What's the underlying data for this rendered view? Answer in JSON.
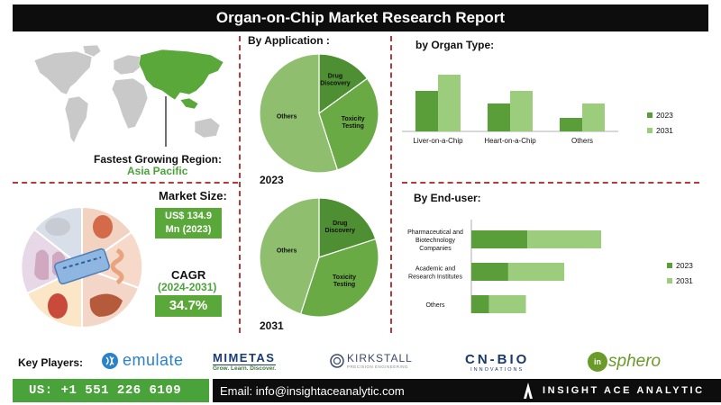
{
  "report": {
    "title": "Organ-on-Chip Market Research Report"
  },
  "region": {
    "label": "Fastest Growing Region:",
    "value": "Asia Pacific"
  },
  "market_size": {
    "label": "Market Size:",
    "value_line1": "US$ 134.9",
    "value_line2": "Mn (2023)"
  },
  "cagr": {
    "label": "CAGR",
    "period": "(2024-2031)",
    "value": "34.7%"
  },
  "application": {
    "title": "By Application :",
    "year_2023": "2023",
    "year_2031": "2031"
  },
  "organ": {
    "title": "by Organ Type:"
  },
  "enduser": {
    "title": "By End-user:"
  },
  "key_players": {
    "label": "Key Players:",
    "logos": [
      {
        "name": "emulate",
        "text": "emulate",
        "color": "#2a82c8"
      },
      {
        "name": "mimetas",
        "text": "MIMETAS",
        "sub": "Grow. Learn. Discover.",
        "color": "#1a3c73"
      },
      {
        "name": "kirkstall",
        "text": "KIRKSTALL",
        "sub": "PRECISION ENGINEERING",
        "color": "#3a4a6a"
      },
      {
        "name": "cnbio",
        "text": "CN-BIO",
        "sub": "INNOVATIONS",
        "color": "#1a3a6a"
      },
      {
        "name": "insphero",
        "text": "sphero",
        "prefix": "in",
        "color": "#6a9a2a"
      }
    ]
  },
  "footer": {
    "phone": "US: +1 551 226 6109",
    "email": "Email: info@insightaceanalytic.com",
    "brand": "INSIGHT ACE ANALYTIC"
  },
  "colors": {
    "dark_green": "#5a9e3a",
    "light_green": "#9ccd7c",
    "pie_dark": "#4f8f33",
    "pie_mid": "#6aaa44",
    "pie_light": "#8fbf6e",
    "accent_red": "#b33b3b"
  },
  "chart_data": [
    {
      "type": "pie",
      "title": "2023",
      "categories": [
        "Drug Discovery",
        "Toxicity Testing",
        "Others"
      ],
      "values": [
        15,
        30,
        55
      ]
    },
    {
      "type": "pie",
      "title": "2031",
      "categories": [
        "Drug Discovery",
        "Toxicity Testing",
        "Others"
      ],
      "values": [
        20,
        35,
        45
      ]
    },
    {
      "type": "bar",
      "title": "by Organ Type:",
      "categories": [
        "Liver-on-a-Chip",
        "Heart-on-a-Chip",
        "Others"
      ],
      "series": [
        {
          "name": "2023",
          "values": [
            45,
            31,
            15
          ]
        },
        {
          "name": "2031",
          "values": [
            63,
            45,
            31
          ]
        }
      ],
      "ylim": [
        0,
        70
      ],
      "legend": "right"
    },
    {
      "type": "bar",
      "orientation": "horizontal",
      "stacked": true,
      "title": "By End-user:",
      "categories": [
        "Pharmaceutical and Biotechnology Companies",
        "Academic and Research Institutes",
        "Others"
      ],
      "series": [
        {
          "name": "2023",
          "values": [
            38,
            25,
            12
          ]
        },
        {
          "name": "2031",
          "values": [
            50,
            38,
            25
          ]
        }
      ],
      "xlim": [
        0,
        110
      ],
      "legend": "right"
    }
  ]
}
